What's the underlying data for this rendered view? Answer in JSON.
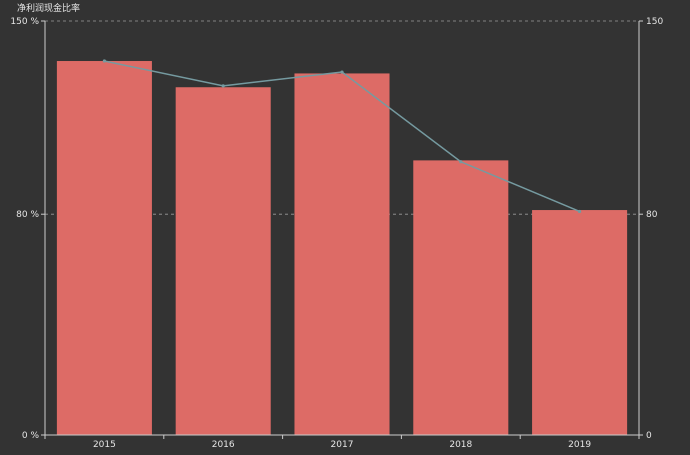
{
  "chart_data": {
    "type": "bar",
    "title": "净利润现金比率",
    "categories": [
      "2015",
      "2016",
      "2017",
      "2018",
      "2019"
    ],
    "series": [
      {
        "type": "bar",
        "values": [
          135.5,
          126,
          131,
          99.5,
          81.5
        ]
      },
      {
        "type": "line",
        "values": [
          135.5,
          126.5,
          131.5,
          99,
          81
        ]
      }
    ],
    "y_left": {
      "ticks": [
        "0 %",
        "80 %",
        "150 %"
      ],
      "tick_values": [
        0,
        80,
        150
      ],
      "ylim": [
        0,
        150
      ]
    },
    "y_right": {
      "ticks": [
        "0",
        "80",
        "150"
      ],
      "tick_values": [
        0,
        80,
        150
      ],
      "ylim": [
        0,
        150
      ]
    },
    "grid": "dashed horizontal at 80 and 150",
    "colors": {
      "bar": "#dd6b66",
      "line": "#759aa0",
      "axis": "#cccccc",
      "text": "#e6e6e6",
      "background": "#333333"
    }
  }
}
